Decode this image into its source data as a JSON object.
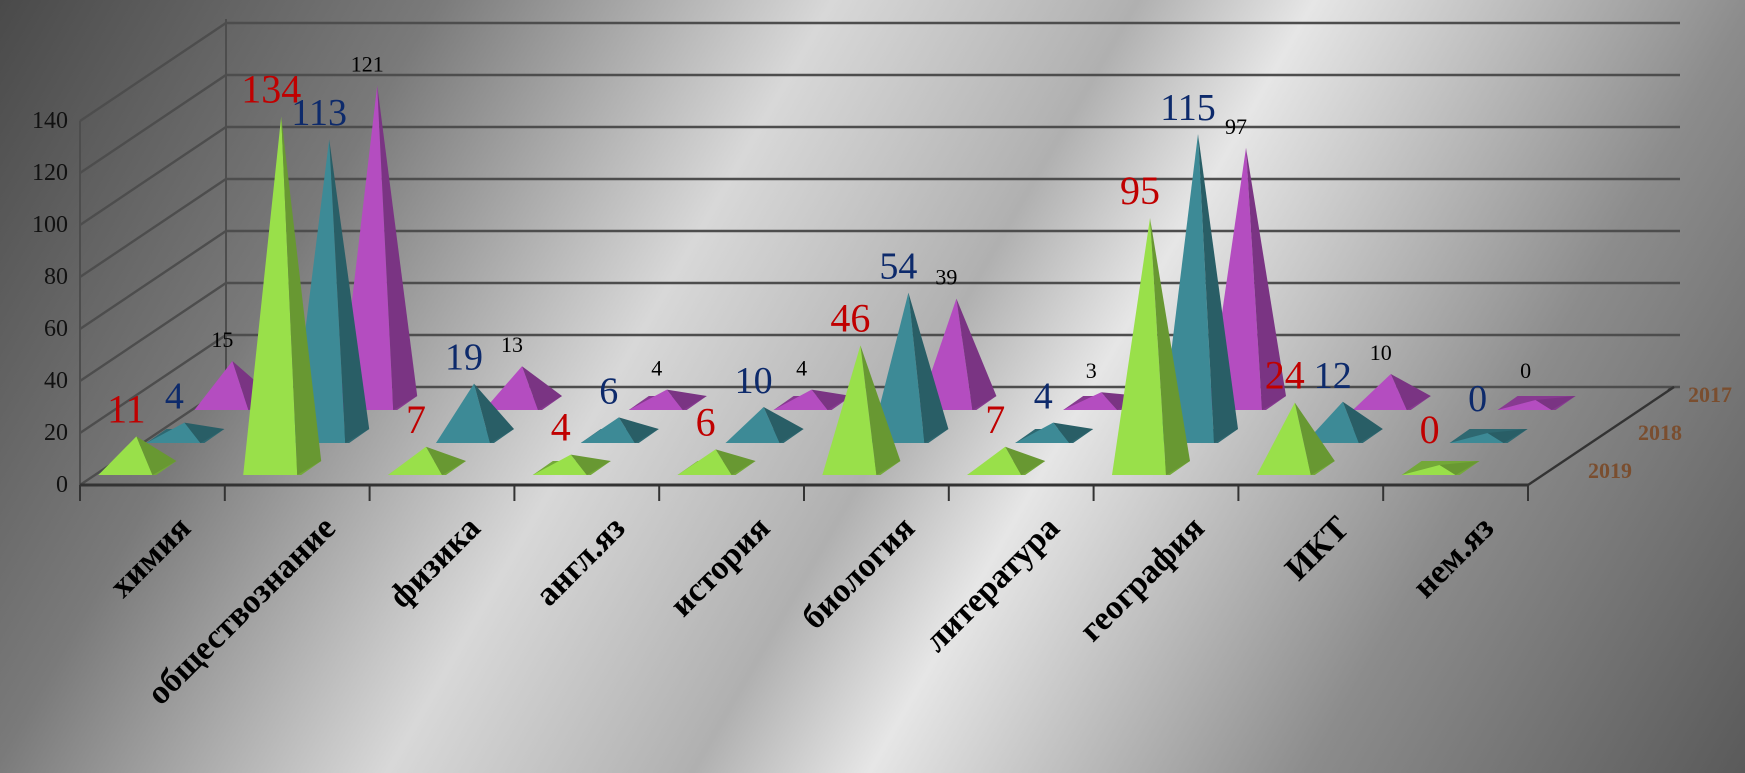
{
  "chart_data": {
    "type": "bar",
    "style": "3d-pyramid",
    "title": "",
    "xlabel": "",
    "ylabel": "",
    "ylim": [
      0,
      140
    ],
    "yticks": [
      "0",
      "20",
      "40",
      "60",
      "80",
      "100",
      "120",
      "140"
    ],
    "grid": true,
    "categories": [
      "химия",
      "обществознание",
      "физика",
      "англ.яз",
      "история",
      "биология",
      "литература",
      "география",
      "ИКТ",
      "нем.яз"
    ],
    "series": [
      {
        "name": "2019",
        "color": "#99e04a",
        "label_color": "#c00000",
        "values": [
          11,
          134,
          7,
          4,
          6,
          46,
          7,
          95,
          24,
          0
        ]
      },
      {
        "name": "2018",
        "color": "#3d8a96",
        "label_color": "#0d2a6b",
        "values": [
          4,
          113,
          19,
          6,
          10,
          54,
          4,
          115,
          12,
          0
        ]
      },
      {
        "name": "2017",
        "color": "#b44dc0",
        "label_color": "#000000",
        "values": [
          15,
          121,
          13,
          4,
          4,
          39,
          3,
          97,
          10,
          0
        ]
      }
    ]
  }
}
